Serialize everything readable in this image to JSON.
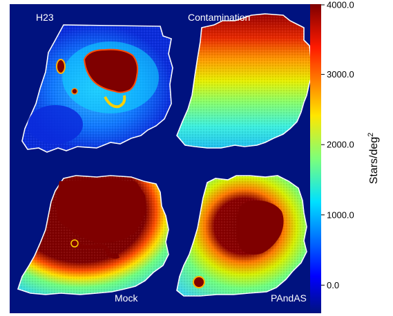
{
  "chart_data": {
    "type": "heatmap",
    "panels": [
      {
        "label": "H23",
        "position": "top-left",
        "description_map": "sparse blue field with a dense red core near the upper middle and a smaller red clump on the left"
      },
      {
        "label": "Contamination",
        "position": "top-right",
        "description_map": "smooth gradient from high density at the top to low density at the bottom"
      },
      {
        "label": "Mock",
        "position": "bottom-left",
        "description_map": "large red core filling most of the upper area with a bright tail and blue outskirts"
      },
      {
        "label": "PAndAS",
        "position": "bottom-right",
        "description_map": "red core in the middle surrounded by orange and green, with a compact red source lower left"
      }
    ],
    "colorbar": {
      "label": "Stars/deg",
      "label_superscript": "2",
      "ticks": [
        "4000.0",
        "3000.0",
        "2000.0",
        "1000.0",
        "0.0"
      ],
      "tick_values": [
        4000,
        3000,
        2000,
        1000,
        0
      ],
      "range": [
        -400,
        4000
      ],
      "colormap": "jet"
    },
    "background_color": "#00127f",
    "footprint_outline_color": "#ffffff"
  }
}
